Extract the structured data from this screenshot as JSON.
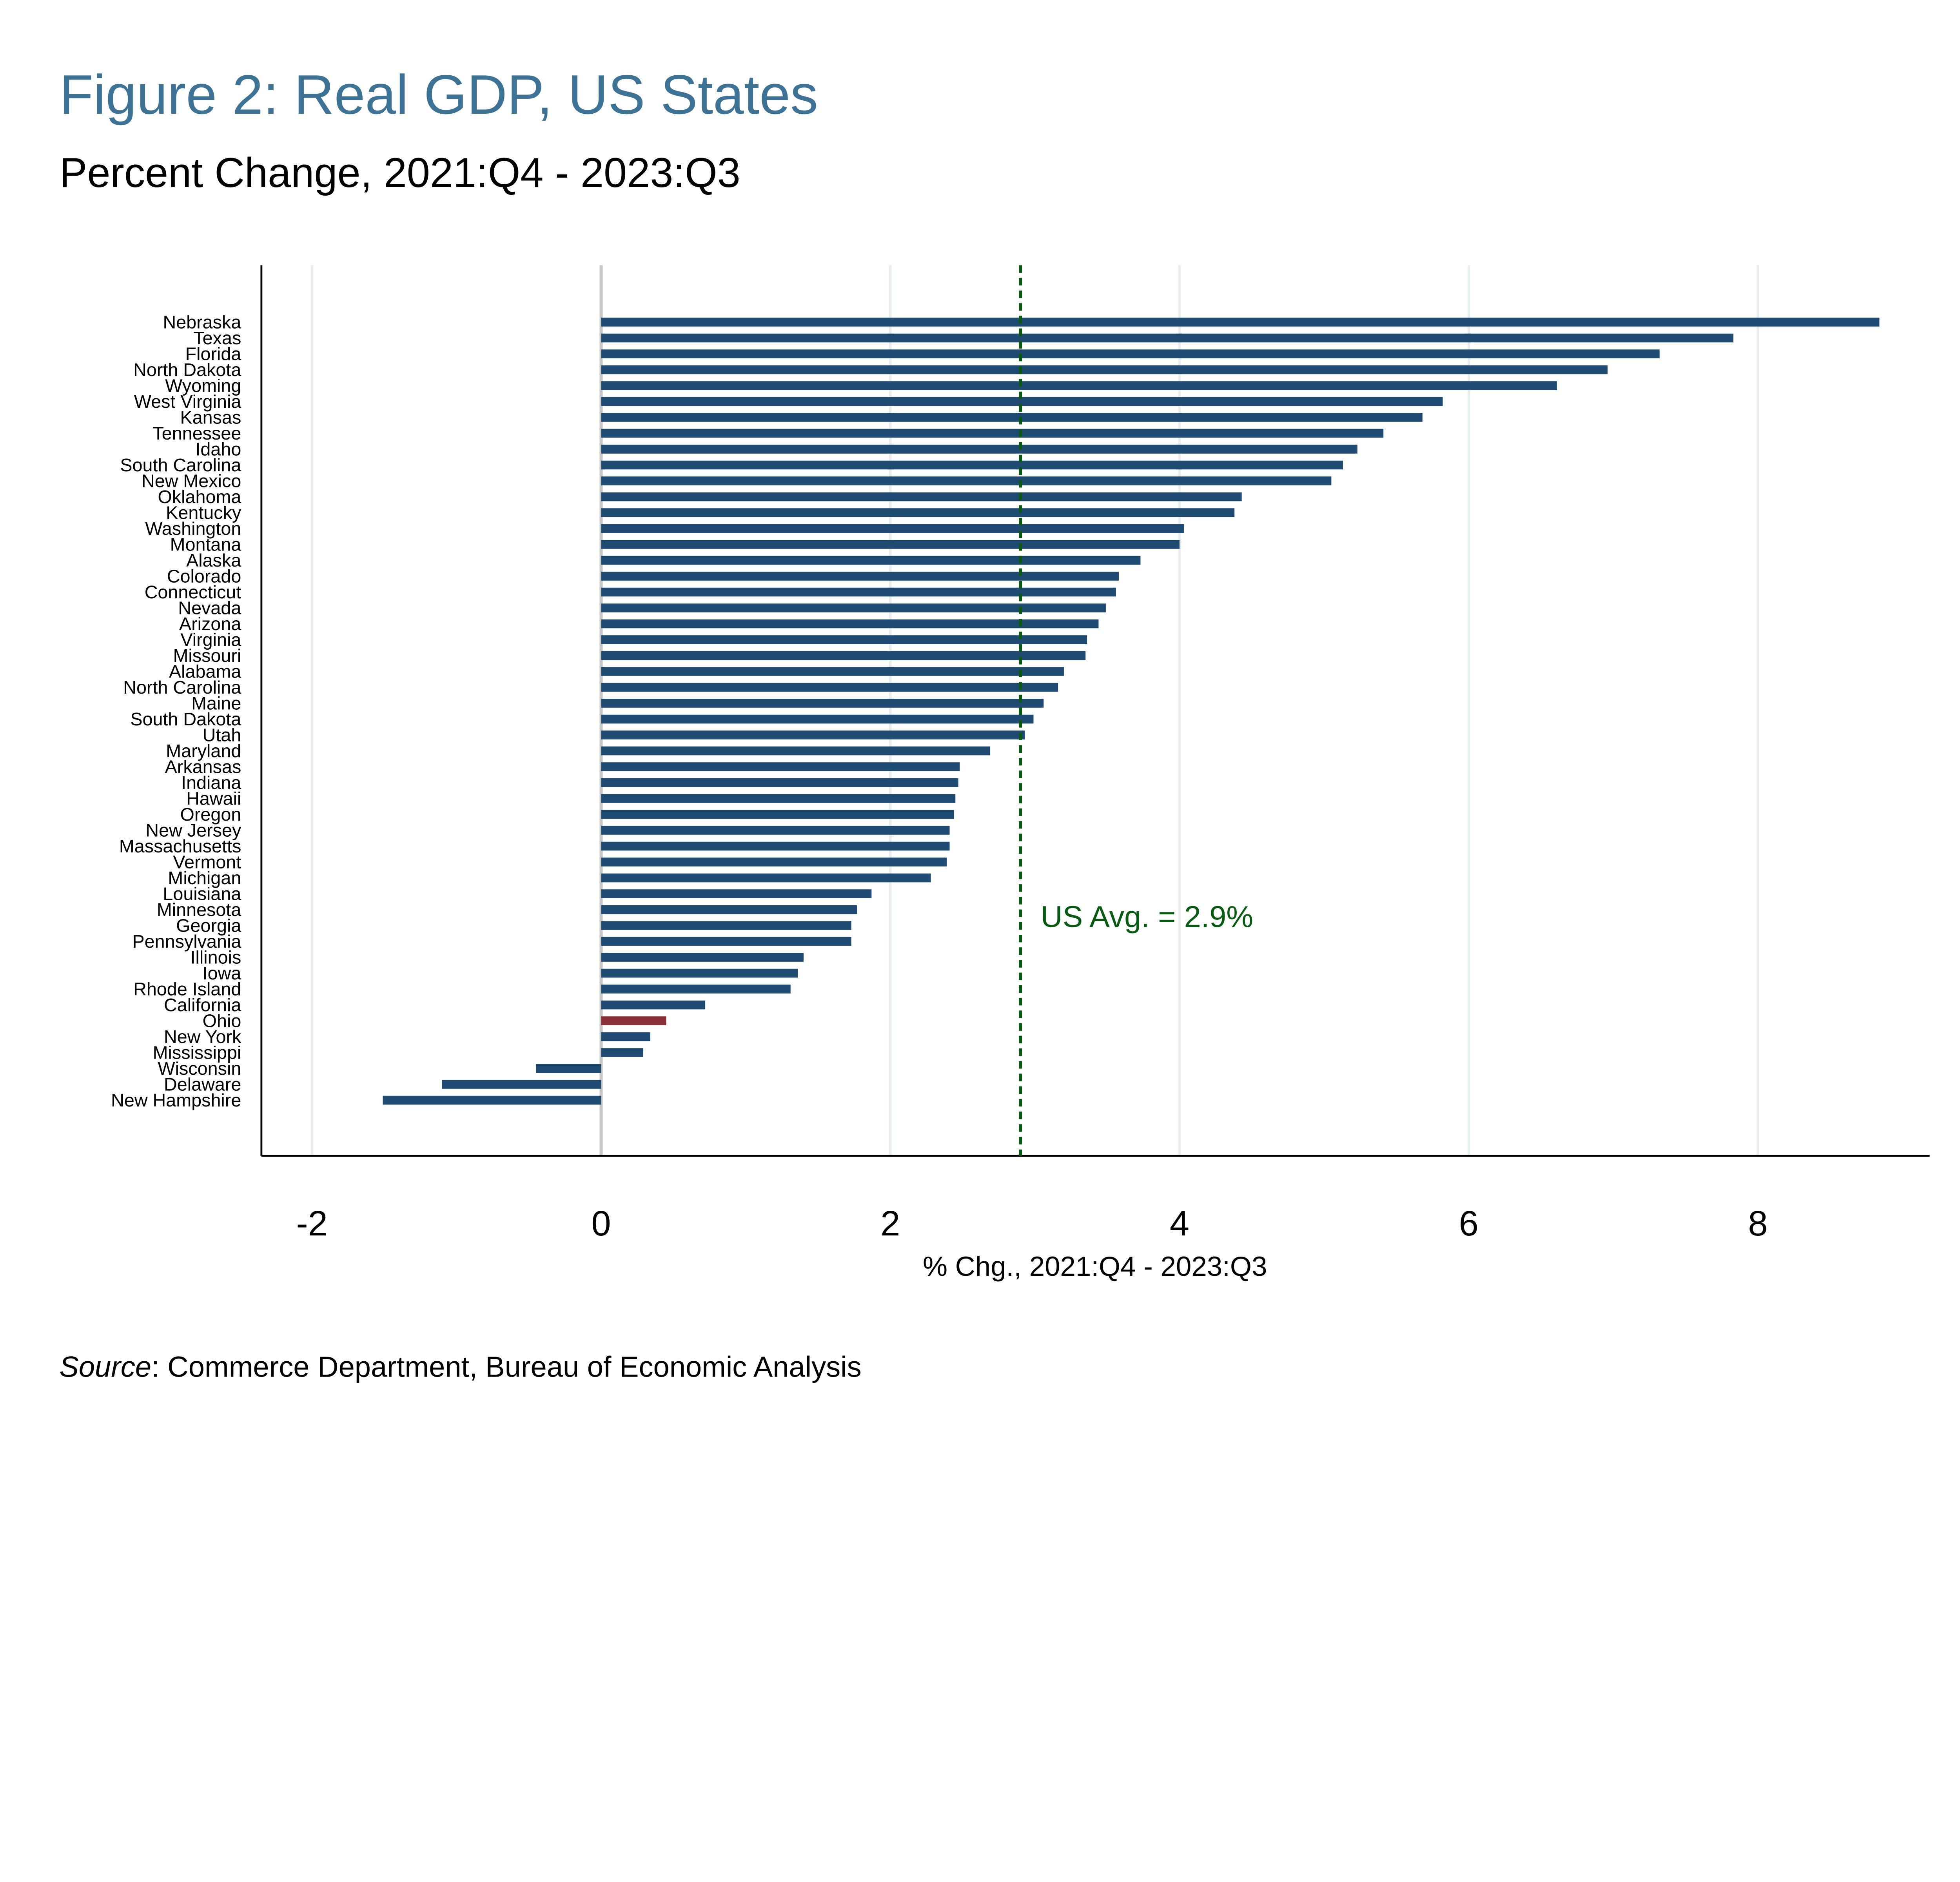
{
  "title": "Figure 2: Real GDP, US States",
  "subtitle": "Percent Change, 2021:Q4 - 2023:Q3",
  "source_label": "Source",
  "source_text": ": Commerce Department, Bureau of Economic Analysis",
  "colors": {
    "title": "#3f7396",
    "bar": "#1f4a72",
    "highlight": "#8b2f36",
    "avg_line": "#0b5a14",
    "grid": "#e6eef0",
    "zero": "#c8c8c8"
  },
  "chart_data": {
    "type": "bar",
    "orientation": "horizontal",
    "title": "Figure 2: Real GDP, US States",
    "subtitle": "Percent Change, 2021:Q4 - 2023:Q3",
    "xlabel": "% Chg., 2021:Q4 - 2023:Q3",
    "ylabel": "",
    "xlim": [
      -2.5,
      9.2
    ],
    "xticks": [
      -2,
      0,
      2,
      4,
      6,
      8
    ],
    "grid": true,
    "highlight": "Ohio",
    "reference_line": {
      "value": 2.9,
      "label": "US Avg. = 2.9%"
    },
    "categories": [
      "Nebraska",
      "Texas",
      "Florida",
      "North Dakota",
      "Wyoming",
      "West Virginia",
      "Kansas",
      "Tennessee",
      "Idaho",
      "South Carolina",
      "New Mexico",
      "Oklahoma",
      "Kentucky",
      "Washington",
      "Montana",
      "Alaska",
      "Colorado",
      "Connecticut",
      "Nevada",
      "Arizona",
      "Virginia",
      "Missouri",
      "Alabama",
      "North Carolina",
      "Maine",
      "South Dakota",
      "Utah",
      "Maryland",
      "Arkansas",
      "Indiana",
      "Hawaii",
      "Oregon",
      "New Jersey",
      "Massachusetts",
      "Vermont",
      "Michigan",
      "Louisiana",
      "Minnesota",
      "Georgia",
      "Pennsylvania",
      "Illinois",
      "Iowa",
      "Rhode Island",
      "California",
      "Ohio",
      "New York",
      "Mississippi",
      "Wisconsin",
      "Delaware",
      "New Hampshire"
    ],
    "values": [
      8.84,
      7.83,
      7.32,
      6.96,
      6.61,
      5.82,
      5.68,
      5.41,
      5.23,
      5.13,
      5.05,
      4.43,
      4.38,
      4.03,
      4.0,
      3.73,
      3.58,
      3.56,
      3.49,
      3.44,
      3.36,
      3.35,
      3.2,
      3.16,
      3.06,
      2.99,
      2.93,
      2.69,
      2.48,
      2.47,
      2.45,
      2.44,
      2.41,
      2.41,
      2.39,
      2.28,
      1.87,
      1.77,
      1.73,
      1.73,
      1.4,
      1.36,
      1.31,
      0.72,
      0.45,
      0.34,
      0.29,
      -0.45,
      -1.1,
      -1.51
    ]
  }
}
